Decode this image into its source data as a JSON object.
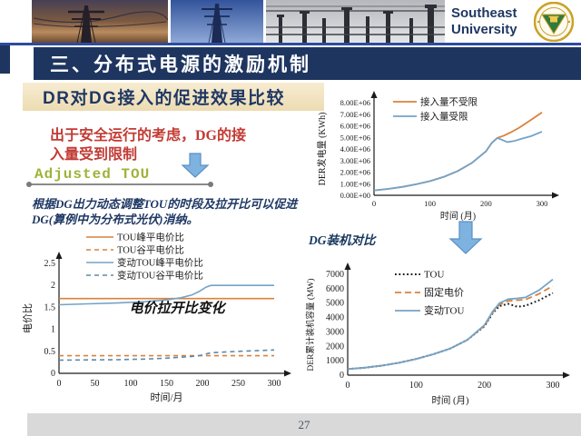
{
  "header": {
    "university_line1": "Southeast",
    "university_line2": "University",
    "photos": [
      "sunset-transmission-tower",
      "blue-sky-lattice-tower",
      "substation-equipment"
    ]
  },
  "title_bar": {
    "title": "三、分布式电源的激励机制"
  },
  "subtitle": {
    "text": "DR对DG接入的促进效果比较"
  },
  "safety_note": {
    "line1": "出于安全运行的考虑，DG的接",
    "line2": "入量受到限制"
  },
  "labels": {
    "adjusted_tou": "Adjusted TOU",
    "dg_comparison": "DG装机对比"
  },
  "description": {
    "text": "根据DG出力动态调整TOU的时段及拉开比可以促进DG(算例中为分布式光伏)消纳。"
  },
  "footer": {
    "page_number": "27"
  },
  "icons": {
    "down_arrow_small": "blue-down-arrow",
    "down_arrow_large": "blue-down-arrow"
  },
  "colors": {
    "navy": "#1E3560",
    "accent_blue_line": "#2E4C9E",
    "subtitle_yellow": "#F3E3C1",
    "note_red": "#C23B34",
    "adjusted_tou_green": "#9EB33A",
    "chart_orange": "#D9823B",
    "chart_blue": "#74A3C7",
    "arrow_blue": "#7EB3E0",
    "footer_gray": "#D9D9D9"
  },
  "chart_data": [
    {
      "type": "line",
      "title": "",
      "xlabel": "时间 (月)",
      "ylabel": "DER发电量 (KWh)",
      "xlim": [
        0,
        300
      ],
      "ylim": [
        0,
        8
      ],
      "xticks": [
        0,
        100,
        200,
        300
      ],
      "yticks": [
        0,
        1,
        2,
        3,
        4,
        5,
        6,
        7,
        8
      ],
      "ytick_labels": [
        "0.00E+00",
        "1.00E+06",
        "2.00E+06",
        "3.00E+06",
        "4.00E+06",
        "5.00E+06",
        "6.00E+06",
        "7.00E+06",
        "8.00E+06"
      ],
      "y_unit": "1e6 KWh",
      "grid": false,
      "legend_position": "top-center",
      "series": [
        {
          "name": "接入量不受限",
          "color": "#D9823B",
          "dash": "",
          "width": 1.8,
          "x": [
            0,
            25,
            50,
            75,
            100,
            125,
            150,
            175,
            200,
            210,
            220,
            232,
            245,
            260,
            280,
            300
          ],
          "y": [
            0.42,
            0.55,
            0.72,
            0.95,
            1.22,
            1.6,
            2.1,
            2.8,
            3.8,
            4.5,
            4.95,
            5.15,
            5.45,
            5.85,
            6.5,
            7.15
          ]
        },
        {
          "name": "接入量受限",
          "color": "#74A3C7",
          "dash": "",
          "width": 1.8,
          "x": [
            0,
            25,
            50,
            75,
            100,
            125,
            150,
            175,
            200,
            210,
            220,
            228,
            238,
            250,
            265,
            280,
            300
          ],
          "y": [
            0.42,
            0.55,
            0.72,
            0.95,
            1.22,
            1.6,
            2.1,
            2.8,
            3.8,
            4.5,
            4.95,
            4.8,
            4.6,
            4.68,
            4.9,
            5.1,
            5.5
          ]
        }
      ]
    },
    {
      "type": "line",
      "title": "",
      "xlabel": "时间/月",
      "ylabel": "电价比",
      "xlim": [
        0,
        300
      ],
      "ylim": [
        0,
        2.5
      ],
      "xticks": [
        0,
        50,
        100,
        150,
        200,
        250,
        300
      ],
      "yticks": [
        0,
        0.5,
        1,
        1.5,
        2,
        2.5
      ],
      "grid": false,
      "legend_position": "top-left",
      "annotation": "电价拉开比变化",
      "series": [
        {
          "name": "TOU峰平电价比",
          "color": "#D9823B",
          "dash": "",
          "width": 1.6,
          "x": [
            0,
            300
          ],
          "y": [
            1.7,
            1.7
          ]
        },
        {
          "name": "TOU谷平电价比",
          "color": "#D9823B",
          "dash": "5 4",
          "width": 1.6,
          "x": [
            0,
            300
          ],
          "y": [
            0.4,
            0.4
          ]
        },
        {
          "name": "变动TOU峰平电价比",
          "color": "#74A3C7",
          "dash": "",
          "width": 1.6,
          "x": [
            0,
            40,
            80,
            120,
            150,
            170,
            185,
            195,
            205,
            212,
            300
          ],
          "y": [
            1.56,
            1.58,
            1.6,
            1.63,
            1.67,
            1.72,
            1.78,
            1.86,
            1.96,
            2.0,
            2.0
          ]
        },
        {
          "name": "变动TOU谷平电价比",
          "color": "#5E88A8",
          "dash": "5 4",
          "width": 1.6,
          "x": [
            0,
            40,
            80,
            120,
            150,
            170,
            185,
            195,
            205,
            212,
            250,
            300
          ],
          "y": [
            0.3,
            0.305,
            0.31,
            0.325,
            0.345,
            0.365,
            0.385,
            0.4,
            0.44,
            0.47,
            0.5,
            0.53
          ]
        }
      ]
    },
    {
      "type": "line",
      "title": "",
      "xlabel": "时间 (月)",
      "ylabel": "DER累计装机容量 (MW)",
      "xlim": [
        0,
        300
      ],
      "ylim": [
        0,
        7000
      ],
      "xticks": [
        0,
        100,
        200,
        300
      ],
      "yticks": [
        0,
        1000,
        2000,
        3000,
        4000,
        5000,
        6000,
        7000
      ],
      "grid": false,
      "legend_position": "top-center",
      "series": [
        {
          "name": "TOU",
          "color": "#1a1a1a",
          "dash": "1.8 2.6",
          "width": 2,
          "x": [
            0,
            25,
            50,
            75,
            100,
            125,
            150,
            175,
            200,
            212,
            222,
            235,
            248,
            260,
            280,
            300
          ],
          "y": [
            420,
            520,
            660,
            860,
            1120,
            1450,
            1850,
            2450,
            3400,
            4300,
            4800,
            4950,
            4750,
            4820,
            5200,
            5700
          ]
        },
        {
          "name": "固定电价",
          "color": "#D9823B",
          "dash": "7 4",
          "width": 1.8,
          "x": [
            0,
            25,
            50,
            75,
            100,
            125,
            150,
            175,
            200,
            212,
            222,
            235,
            248,
            260,
            280,
            300
          ],
          "y": [
            420,
            520,
            660,
            860,
            1120,
            1450,
            1850,
            2450,
            3430,
            4350,
            4900,
            5150,
            5200,
            5250,
            5650,
            6200
          ]
        },
        {
          "name": "变动TOU",
          "color": "#74A3C7",
          "dash": "",
          "width": 1.8,
          "x": [
            0,
            25,
            50,
            75,
            100,
            125,
            150,
            175,
            200,
            212,
            222,
            235,
            248,
            260,
            280,
            300
          ],
          "y": [
            420,
            520,
            660,
            860,
            1120,
            1450,
            1850,
            2450,
            3480,
            4420,
            5000,
            5280,
            5330,
            5400,
            5900,
            6650
          ]
        }
      ]
    }
  ]
}
